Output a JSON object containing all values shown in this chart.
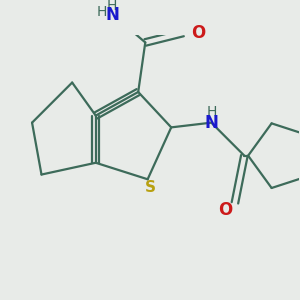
{
  "bg_color": "#e8ebe8",
  "bond_color": "#3d6b5a",
  "S_color": "#b8a010",
  "N_color": "#1a1acc",
  "O_color": "#cc1a1a",
  "H_color": "#3d6b5a",
  "bond_width": 1.6,
  "figsize": [
    3.0,
    3.0
  ],
  "dpi": 100,
  "xlim": [
    -2.5,
    3.8
  ],
  "ylim": [
    -2.8,
    2.2
  ]
}
